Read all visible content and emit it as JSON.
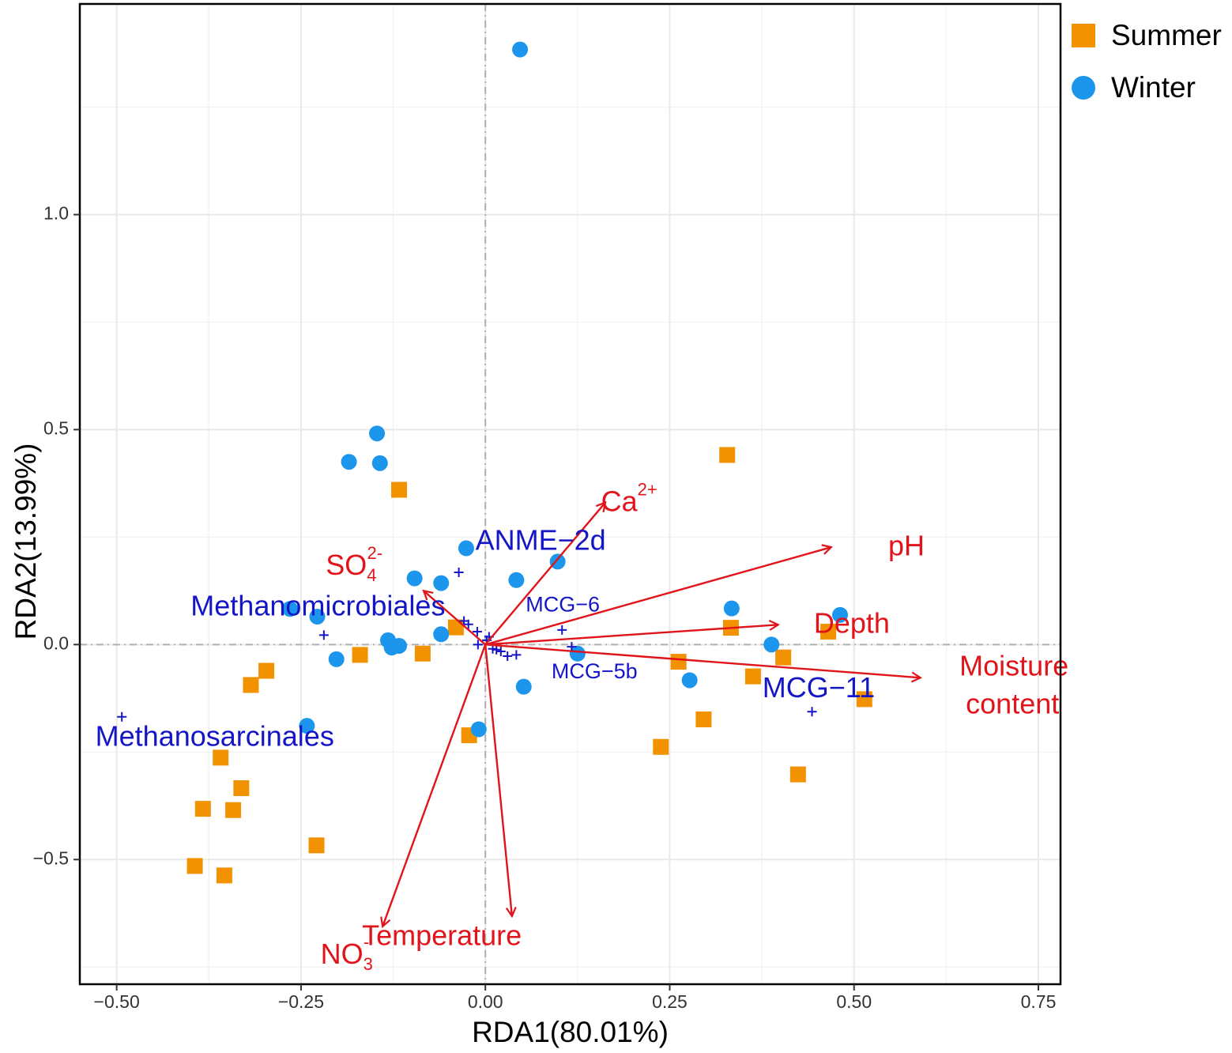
{
  "colors": {
    "summer": "#F39200",
    "winter": "#1B96EC",
    "env": "#E0141A",
    "taxa": "#1515C8",
    "grid": "#E9E9E9",
    "zero": "#B0B0B0"
  },
  "legend": {
    "summer_label": "Summer",
    "winter_label": "Winter"
  },
  "chart_data": {
    "type": "scatter",
    "title": "",
    "xlabel": "RDA1(80.01%)",
    "ylabel": "RDA2(13.99%)",
    "xlim": [
      -0.55,
      0.78
    ],
    "ylim": [
      -0.79,
      1.49
    ],
    "xticks": [
      -0.5,
      -0.25,
      0.0,
      0.25,
      0.5,
      0.75
    ],
    "xtick_labels": [
      "−0.50",
      "−0.25",
      "0.00",
      "0.25",
      "0.50",
      "0.75"
    ],
    "yticks": [
      -0.5,
      0.0,
      0.5,
      1.0
    ],
    "ytick_labels": [
      "−0.5",
      "0.0",
      "0.5",
      "1.0"
    ],
    "grid": true,
    "legend_position": "top-right outside",
    "series": [
      {
        "name": "Summer",
        "marker": "square",
        "points": [
          [
            0.328,
            0.441
          ],
          [
            -0.117,
            0.36
          ],
          [
            -0.04,
            0.04
          ],
          [
            0.333,
            0.039
          ],
          [
            0.465,
            0.03
          ],
          [
            -0.085,
            -0.021
          ],
          [
            -0.17,
            -0.024
          ],
          [
            0.404,
            -0.03
          ],
          [
            0.262,
            -0.04
          ],
          [
            -0.297,
            -0.061
          ],
          [
            -0.318,
            -0.094
          ],
          [
            0.363,
            -0.074
          ],
          [
            0.514,
            -0.127
          ],
          [
            0.296,
            -0.174
          ],
          [
            -0.022,
            -0.211
          ],
          [
            0.238,
            -0.238
          ],
          [
            -0.359,
            -0.263
          ],
          [
            0.424,
            -0.302
          ],
          [
            -0.331,
            -0.334
          ],
          [
            -0.383,
            -0.382
          ],
          [
            -0.342,
            -0.385
          ],
          [
            -0.229,
            -0.467
          ],
          [
            -0.394,
            -0.515
          ],
          [
            -0.354,
            -0.537
          ]
        ]
      },
      {
        "name": "Winter",
        "marker": "circle",
        "points": [
          [
            0.047,
            1.384
          ],
          [
            -0.147,
            0.491
          ],
          [
            -0.185,
            0.425
          ],
          [
            -0.143,
            0.422
          ],
          [
            -0.026,
            0.224
          ],
          [
            0.098,
            0.193
          ],
          [
            0.042,
            0.15
          ],
          [
            -0.096,
            0.154
          ],
          [
            -0.06,
            0.143
          ],
          [
            -0.265,
            0.083
          ],
          [
            -0.228,
            0.065
          ],
          [
            0.334,
            0.084
          ],
          [
            0.481,
            0.069
          ],
          [
            -0.06,
            0.024
          ],
          [
            0.388,
            0.0
          ],
          [
            -0.132,
            0.01
          ],
          [
            -0.117,
            -0.003
          ],
          [
            -0.127,
            -0.007
          ],
          [
            -0.202,
            -0.034
          ],
          [
            0.125,
            -0.021
          ],
          [
            0.277,
            -0.083
          ],
          [
            0.052,
            -0.098
          ],
          [
            -0.242,
            -0.189
          ],
          [
            -0.009,
            -0.197
          ]
        ]
      }
    ],
    "env_vectors": [
      {
        "name": "Ca",
        "sup": "2+",
        "sub": "",
        "x": 0.162,
        "y": 0.329
      },
      {
        "name": "pH",
        "sup": "",
        "sub": "",
        "x": 0.468,
        "y": 0.226
      },
      {
        "name": "SO",
        "sup": "2-",
        "sub": "4",
        "x": -0.083,
        "y": 0.124
      },
      {
        "name": "Depth",
        "sup": "",
        "sub": "",
        "x": 0.396,
        "y": 0.046
      },
      {
        "name": "Moisture content",
        "sup": "",
        "sub": "",
        "x": 0.589,
        "y": -0.077
      },
      {
        "name": "NO",
        "sup": "-",
        "sub": "3",
        "x": -0.139,
        "y": -0.654
      },
      {
        "name": "Temperature",
        "sup": "",
        "sub": "",
        "x": 0.036,
        "y": -0.63
      }
    ],
    "taxa_points": [
      [
        -0.493,
        -0.168
      ],
      [
        -0.219,
        0.022
      ],
      [
        -0.036,
        0.168
      ],
      [
        -0.029,
        0.055
      ],
      [
        -0.023,
        0.047
      ],
      [
        -0.011,
        0.03
      ],
      [
        -0.01,
        0.0
      ],
      [
        0.002,
        0.01
      ],
      [
        0.005,
        0.018
      ],
      [
        0.01,
        -0.01
      ],
      [
        0.015,
        -0.012
      ],
      [
        0.021,
        -0.016
      ],
      [
        0.03,
        -0.027
      ],
      [
        0.042,
        -0.024
      ],
      [
        0.104,
        0.034
      ],
      [
        0.117,
        -0.005
      ],
      [
        0.443,
        -0.156
      ]
    ],
    "taxa_labels": [
      {
        "text": "ANME−2d",
        "x": 0.075,
        "y": 0.238,
        "size": "large"
      },
      {
        "text": "Methanomicrobiales",
        "x": -0.227,
        "y": 0.085,
        "size": "large"
      },
      {
        "text": "MCG−6",
        "x": 0.105,
        "y": 0.09,
        "size": "small"
      },
      {
        "text": "MCG−5b",
        "x": 0.148,
        "y": -0.065,
        "size": "small"
      },
      {
        "text": "MCG−11",
        "x": 0.452,
        "y": -0.105,
        "size": "large"
      },
      {
        "text": "Methanosarcinales",
        "x": -0.367,
        "y": -0.218,
        "size": "large"
      }
    ]
  }
}
